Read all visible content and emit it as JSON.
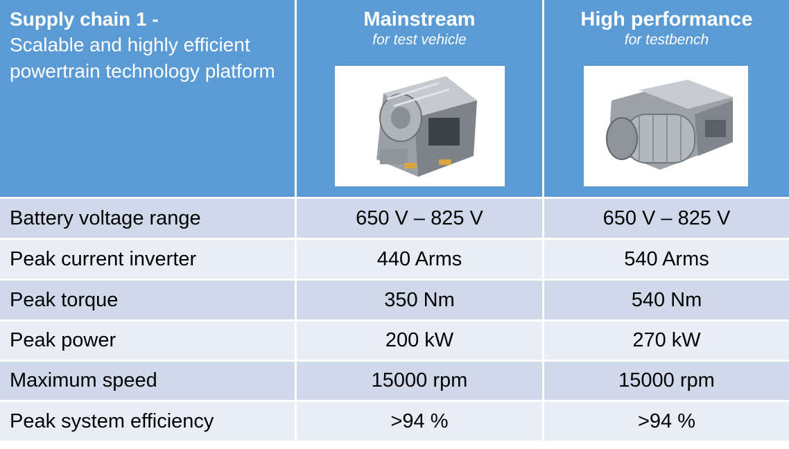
{
  "header": {
    "title_bold": "Supply chain 1 -",
    "title_rest": "Scalable and highly efficient powertrain technology platform",
    "columns": [
      {
        "title": "Mainstream",
        "subtitle": "for test vehicle",
        "image": "e-drive-unit-photo"
      },
      {
        "title": "High performance",
        "subtitle": "for testbench",
        "image": "e-drive-unit-photo"
      }
    ]
  },
  "rows": [
    {
      "label": "Battery voltage range",
      "mainstream": "650 V – 825 V",
      "high_performance": "650 V – 825 V"
    },
    {
      "label": "Peak current inverter",
      "mainstream": "440 Arms",
      "high_performance": "540 Arms"
    },
    {
      "label": "Peak torque",
      "mainstream": "350 Nm",
      "high_performance": "540 Nm"
    },
    {
      "label": "Peak power",
      "mainstream": "200 kW",
      "high_performance": "270 kW"
    },
    {
      "label": "Maximum speed",
      "mainstream": "15000 rpm",
      "high_performance": "15000 rpm"
    },
    {
      "label": "Peak system efficiency",
      "mainstream": ">94 %",
      "high_performance": ">94 %"
    }
  ],
  "colors": {
    "header": "#5b9bd5",
    "row_dark": "#cfd9ea",
    "row_light": "#e9edf5"
  }
}
